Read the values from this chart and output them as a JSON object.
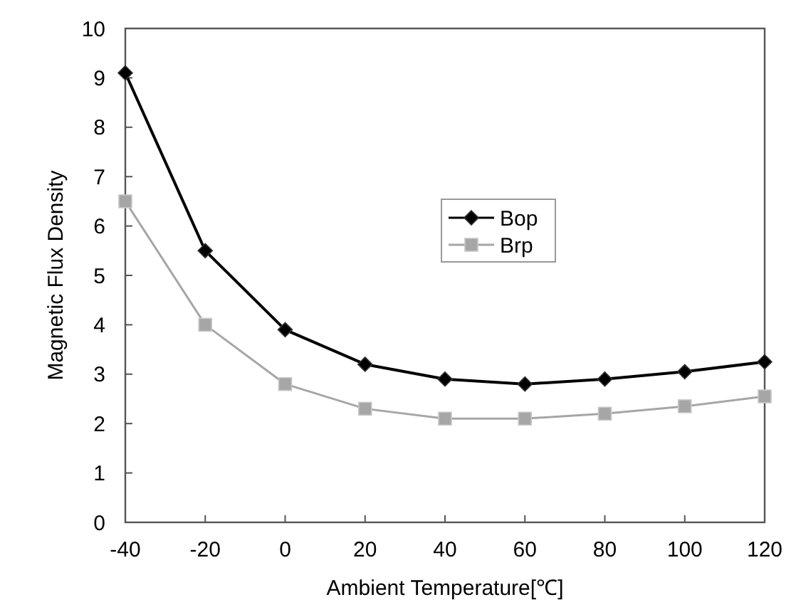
{
  "chart_data": {
    "type": "line",
    "xlabel": "Ambient Temperature[℃]",
    "ylabel": "Magnetic Flux Density",
    "x": [
      -40,
      -20,
      0,
      20,
      40,
      60,
      80,
      100,
      120
    ],
    "series": [
      {
        "name": "Bop",
        "color": "#000000",
        "marker": "diamond",
        "values": [
          9.1,
          5.5,
          3.9,
          3.2,
          2.9,
          2.8,
          2.9,
          3.05,
          3.25
        ]
      },
      {
        "name": "Brp",
        "color": "#a6a6a6",
        "marker": "square",
        "values": [
          6.5,
          4.0,
          2.8,
          2.3,
          2.1,
          2.1,
          2.2,
          2.35,
          2.55
        ]
      }
    ],
    "xlim": [
      -40,
      120
    ],
    "xticks": [
      -40,
      -20,
      0,
      20,
      40,
      60,
      80,
      100,
      120
    ],
    "ylim": [
      0,
      10
    ],
    "yticks": [
      0,
      1,
      2,
      3,
      4,
      5,
      6,
      7,
      8,
      9,
      10
    ],
    "grid": false,
    "legend": "center",
    "line_style": "solid"
  }
}
